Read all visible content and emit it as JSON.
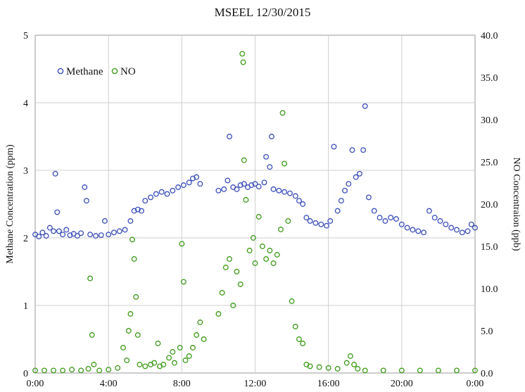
{
  "chart_data": {
    "type": "scatter",
    "title": "MSEEL 12/30/2015",
    "xlabel": "",
    "x_tick_labels": [
      "0:00",
      "4:00",
      "8:00",
      "12:00",
      "16:00",
      "20:00",
      "0:00"
    ],
    "x_range_hours": [
      0,
      24
    ],
    "y_left": {
      "label": "Methane Concentration (ppm)",
      "range": [
        0,
        5
      ],
      "tick_labels": [
        "0",
        "1",
        "2",
        "3",
        "4",
        "5"
      ]
    },
    "y_right": {
      "label": "NO Concentraion (ppb)",
      "range": [
        0,
        40
      ],
      "tick_labels": [
        "0.0",
        "5.0",
        "10.0",
        "15.0",
        "20.0",
        "25.0",
        "30.0",
        "35.0",
        "40.0"
      ]
    },
    "grid": true,
    "legend_position": "top-left",
    "series": [
      {
        "name": "Methane",
        "axis": "left",
        "color": "#3b4fb8",
        "points": [
          [
            0.0,
            2.05
          ],
          [
            0.2,
            2.02
          ],
          [
            0.4,
            2.08
          ],
          [
            0.6,
            2.03
          ],
          [
            0.8,
            2.15
          ],
          [
            1.0,
            2.1
          ],
          [
            1.1,
            2.95
          ],
          [
            1.2,
            2.38
          ],
          [
            1.3,
            2.1
          ],
          [
            1.5,
            2.05
          ],
          [
            1.7,
            2.12
          ],
          [
            1.9,
            2.04
          ],
          [
            2.1,
            2.06
          ],
          [
            2.3,
            2.03
          ],
          [
            2.5,
            2.07
          ],
          [
            2.7,
            2.75
          ],
          [
            2.8,
            2.55
          ],
          [
            3.0,
            2.05
          ],
          [
            3.3,
            2.03
          ],
          [
            3.6,
            2.04
          ],
          [
            3.8,
            2.25
          ],
          [
            4.0,
            2.05
          ],
          [
            4.3,
            2.08
          ],
          [
            4.6,
            2.1
          ],
          [
            4.9,
            2.12
          ],
          [
            5.2,
            2.25
          ],
          [
            5.4,
            2.4
          ],
          [
            5.6,
            2.42
          ],
          [
            5.8,
            2.4
          ],
          [
            6.0,
            2.55
          ],
          [
            6.3,
            2.6
          ],
          [
            6.6,
            2.65
          ],
          [
            6.9,
            2.68
          ],
          [
            7.2,
            2.65
          ],
          [
            7.5,
            2.7
          ],
          [
            7.8,
            2.75
          ],
          [
            8.1,
            2.78
          ],
          [
            8.4,
            2.82
          ],
          [
            8.6,
            2.88
          ],
          [
            8.8,
            2.9
          ],
          [
            9.0,
            2.8
          ],
          [
            10.0,
            2.7
          ],
          [
            10.3,
            2.72
          ],
          [
            10.5,
            2.85
          ],
          [
            10.6,
            3.5
          ],
          [
            10.8,
            2.75
          ],
          [
            11.0,
            2.72
          ],
          [
            11.2,
            2.78
          ],
          [
            11.4,
            2.8
          ],
          [
            11.6,
            2.75
          ],
          [
            11.8,
            2.78
          ],
          [
            12.0,
            2.8
          ],
          [
            12.2,
            2.76
          ],
          [
            12.5,
            2.82
          ],
          [
            12.6,
            3.2
          ],
          [
            12.8,
            3.05
          ],
          [
            12.9,
            3.5
          ],
          [
            13.0,
            2.72
          ],
          [
            13.3,
            2.7
          ],
          [
            13.6,
            2.68
          ],
          [
            13.9,
            2.66
          ],
          [
            14.2,
            2.62
          ],
          [
            14.4,
            2.55
          ],
          [
            14.6,
            2.5
          ],
          [
            14.8,
            2.3
          ],
          [
            15.0,
            2.25
          ],
          [
            15.3,
            2.22
          ],
          [
            15.6,
            2.2
          ],
          [
            15.9,
            2.18
          ],
          [
            16.1,
            2.25
          ],
          [
            16.3,
            3.35
          ],
          [
            16.5,
            2.4
          ],
          [
            16.7,
            2.55
          ],
          [
            16.9,
            2.7
          ],
          [
            17.1,
            2.8
          ],
          [
            17.3,
            3.3
          ],
          [
            17.5,
            2.9
          ],
          [
            17.7,
            2.95
          ],
          [
            17.9,
            3.3
          ],
          [
            18.0,
            3.95
          ],
          [
            18.2,
            2.6
          ],
          [
            18.5,
            2.4
          ],
          [
            18.8,
            2.3
          ],
          [
            19.1,
            2.25
          ],
          [
            19.4,
            2.3
          ],
          [
            19.7,
            2.28
          ],
          [
            20.0,
            2.2
          ],
          [
            20.3,
            2.15
          ],
          [
            20.6,
            2.12
          ],
          [
            20.9,
            2.1
          ],
          [
            21.2,
            2.08
          ],
          [
            21.5,
            2.4
          ],
          [
            21.8,
            2.3
          ],
          [
            22.1,
            2.25
          ],
          [
            22.4,
            2.2
          ],
          [
            22.7,
            2.15
          ],
          [
            23.0,
            2.12
          ],
          [
            23.3,
            2.08
          ],
          [
            23.6,
            2.1
          ],
          [
            23.8,
            2.2
          ],
          [
            24.0,
            2.15
          ]
        ]
      },
      {
        "name": "NO",
        "axis": "right",
        "color": "#3e9a1a",
        "points": [
          [
            0.0,
            0.3
          ],
          [
            0.5,
            0.3
          ],
          [
            1.0,
            0.3
          ],
          [
            1.5,
            0.3
          ],
          [
            2.0,
            0.4
          ],
          [
            2.5,
            0.3
          ],
          [
            2.9,
            0.5
          ],
          [
            3.0,
            11.2
          ],
          [
            3.1,
            4.5
          ],
          [
            3.2,
            1.0
          ],
          [
            3.5,
            0.3
          ],
          [
            4.0,
            0.4
          ],
          [
            4.5,
            0.6
          ],
          [
            4.8,
            3.0
          ],
          [
            5.0,
            1.5
          ],
          [
            5.1,
            5.0
          ],
          [
            5.2,
            7.0
          ],
          [
            5.3,
            15.8
          ],
          [
            5.4,
            13.5
          ],
          [
            5.5,
            9.0
          ],
          [
            5.6,
            4.5
          ],
          [
            5.7,
            1.0
          ],
          [
            6.0,
            0.8
          ],
          [
            6.3,
            1.0
          ],
          [
            6.5,
            1.2
          ],
          [
            6.7,
            3.5
          ],
          [
            6.8,
            0.8
          ],
          [
            7.0,
            1.0
          ],
          [
            7.3,
            1.8
          ],
          [
            7.5,
            2.5
          ],
          [
            7.6,
            1.2
          ],
          [
            7.9,
            3.0
          ],
          [
            8.0,
            15.3
          ],
          [
            8.1,
            10.8
          ],
          [
            8.2,
            1.5
          ],
          [
            8.4,
            2.0
          ],
          [
            8.6,
            3.0
          ],
          [
            8.8,
            4.5
          ],
          [
            9.0,
            6.0
          ],
          [
            9.2,
            4.0
          ],
          [
            10.0,
            7.0
          ],
          [
            10.2,
            9.5
          ],
          [
            10.4,
            12.5
          ],
          [
            10.6,
            13.5
          ],
          [
            10.8,
            8.0
          ],
          [
            11.0,
            12.0
          ],
          [
            11.2,
            10.5
          ],
          [
            11.3,
            37.8
          ],
          [
            11.35,
            36.8
          ],
          [
            11.4,
            25.2
          ],
          [
            11.5,
            20.5
          ],
          [
            11.7,
            14.5
          ],
          [
            11.9,
            16.0
          ],
          [
            12.0,
            13.0
          ],
          [
            12.2,
            18.5
          ],
          [
            12.4,
            15.0
          ],
          [
            12.6,
            13.5
          ],
          [
            12.8,
            14.5
          ],
          [
            13.0,
            13.0
          ],
          [
            13.2,
            14.0
          ],
          [
            13.4,
            17.0
          ],
          [
            13.5,
            30.8
          ],
          [
            13.6,
            24.8
          ],
          [
            13.8,
            18.0
          ],
          [
            14.0,
            8.5
          ],
          [
            14.2,
            5.5
          ],
          [
            14.4,
            4.0
          ],
          [
            14.6,
            3.5
          ],
          [
            14.8,
            1.0
          ],
          [
            15.0,
            0.8
          ],
          [
            15.5,
            0.7
          ],
          [
            16.0,
            0.6
          ],
          [
            16.5,
            0.5
          ],
          [
            17.0,
            1.2
          ],
          [
            17.2,
            2.0
          ],
          [
            17.4,
            1.0
          ],
          [
            17.6,
            0.5
          ],
          [
            18.0,
            0.3
          ],
          [
            19.0,
            0.3
          ],
          [
            20.0,
            0.3
          ],
          [
            21.0,
            0.3
          ],
          [
            22.0,
            0.3
          ],
          [
            23.0,
            0.3
          ],
          [
            24.0,
            0.3
          ]
        ]
      }
    ]
  }
}
